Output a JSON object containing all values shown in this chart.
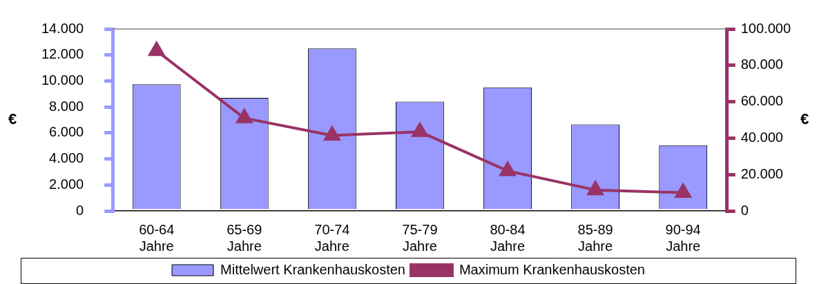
{
  "chart_data": {
    "type": "bar",
    "ylabel": "€",
    "y2label": "€",
    "categories": [
      "60-64 Jahre",
      "65-69 Jahre",
      "70-74 Jahre",
      "75-79 Jahre",
      "80-84 Jahre",
      "85-89 Jahre",
      "90-94 Jahre"
    ],
    "series": [
      {
        "name": "Mittelwert Krankenhauskosten",
        "color": "#9999ff",
        "values": [
          9750,
          8700,
          12500,
          8400,
          9500,
          6650,
          5050
        ]
      },
      {
        "name": "Maximum Krankenhauskosten",
        "type": "line",
        "axis": "y2",
        "color": "#993366",
        "marker": "triangle",
        "values": [
          88000,
          51000,
          41500,
          43500,
          22000,
          11500,
          10000
        ]
      }
    ],
    "ylim": [
      0,
      14000
    ],
    "yticks": [
      {
        "value": 0,
        "label": "0"
      },
      {
        "value": 2000,
        "label": "2.000"
      },
      {
        "value": 4000,
        "label": "4.000"
      },
      {
        "value": 6000,
        "label": "6.000"
      },
      {
        "value": 8000,
        "label": "8.000"
      },
      {
        "value": 10000,
        "label": "10.000"
      },
      {
        "value": 12000,
        "label": "12.000"
      },
      {
        "value": 14000,
        "label": "14.000"
      }
    ],
    "y2lim": [
      0,
      100000
    ],
    "y2ticks": [
      {
        "value": 0,
        "label": "0"
      },
      {
        "value": 20000,
        "label": "20.000"
      },
      {
        "value": 40000,
        "label": "40.000"
      },
      {
        "value": 60000,
        "label": "60.000"
      },
      {
        "value": 80000,
        "label": "80.000"
      },
      {
        "value": 100000,
        "label": "100.000"
      }
    ],
    "grid": false,
    "legend": "bottom"
  }
}
